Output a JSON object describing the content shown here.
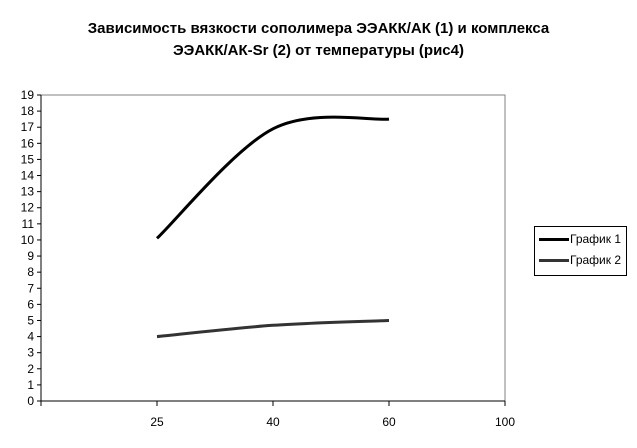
{
  "chart_data": {
    "type": "line",
    "title": "Зависимость вязкости сополимера ЭЭАКК/АК (1) и комплекса ЭЭАКК/АК-Sr (2) от температуры (рис4)",
    "title_lines": [
      "Зависимость вязкости сополимера ЭЭАКК/АК (1) и комплекса",
      "ЭЭАКК/АК-Sr (2) от температуры (рис4)"
    ],
    "xlabel": "",
    "ylabel": "",
    "categories": [
      "",
      "25",
      "40",
      "60",
      "100"
    ],
    "ylim": [
      0,
      19
    ],
    "yticks": [
      0,
      1,
      2,
      3,
      4,
      5,
      6,
      7,
      8,
      9,
      10,
      11,
      12,
      13,
      14,
      15,
      16,
      17,
      18,
      19
    ],
    "grid": false,
    "smoothed": true,
    "legend_position": "right",
    "series": [
      {
        "name": "График 1",
        "values": [
          null,
          10.1,
          16.9,
          17.5,
          null
        ],
        "color": "#000000"
      },
      {
        "name": "График 2",
        "values": [
          null,
          4.0,
          4.7,
          5.0,
          null
        ],
        "color": "#333333"
      }
    ]
  }
}
